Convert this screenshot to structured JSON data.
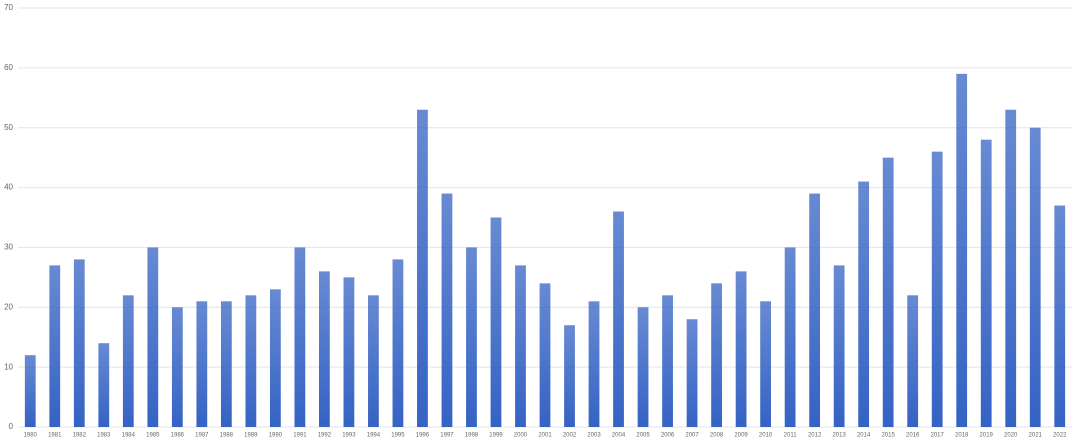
{
  "chart_data": {
    "type": "bar",
    "categories": [
      "1980",
      "1981",
      "1982",
      "1983",
      "1984",
      "1985",
      "1986",
      "1987",
      "1988",
      "1989",
      "1990",
      "1991",
      "1992",
      "1993",
      "1994",
      "1995",
      "1996",
      "1997",
      "1998",
      "1999",
      "2000",
      "2001",
      "2002",
      "2003",
      "2004",
      "2005",
      "2006",
      "2007",
      "2008",
      "2009",
      "2010",
      "2011",
      "2012",
      "2013",
      "2014",
      "2015",
      "2016",
      "2017",
      "2018",
      "2019",
      "2020",
      "2021",
      "2022"
    ],
    "values": [
      12,
      27,
      28,
      14,
      22,
      30,
      20,
      21,
      21,
      22,
      23,
      30,
      26,
      25,
      22,
      28,
      53,
      39,
      30,
      35,
      27,
      24,
      17,
      21,
      36,
      20,
      22,
      18,
      24,
      26,
      21,
      30,
      39,
      27,
      41,
      45,
      22,
      46,
      59,
      48,
      53,
      50,
      37
    ],
    "color": "#3563c4",
    "ylim": [
      0,
      70
    ],
    "yticks": [
      0,
      10,
      20,
      30,
      40,
      50,
      60,
      70
    ],
    "grid": true
  }
}
